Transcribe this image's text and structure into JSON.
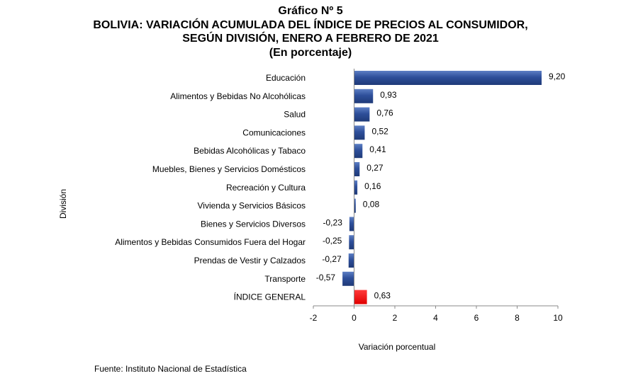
{
  "header": {
    "line1": "Gráfico Nº 5",
    "line2": "BOLIVIA: VARIACIÓN ACUMULADA DEL ÍNDICE DE PRECIOS AL CONSUMIDOR,",
    "line3": "SEGÚN DIVISIÓN, ENERO A FEBRERO DE 2021",
    "line4": "(En porcentaje)"
  },
  "footer": {
    "source": "Fuente: Instituto Nacional de Estadística"
  },
  "chart_data": {
    "type": "bar",
    "orientation": "horizontal",
    "title": "BOLIVIA: VARIACIÓN ACUMULADA DEL ÍNDICE DE PRECIOS AL CONSUMIDOR, SEGÚN DIVISIÓN, ENERO A FEBRERO DE 2021",
    "subtitle": "(En porcentaje)",
    "xlabel": "Variación porcentual",
    "ylabel": "División",
    "xlim": [
      -2,
      10
    ],
    "xticks": [
      -2,
      0,
      2,
      4,
      6,
      8,
      10
    ],
    "xtick_labels": [
      "-2",
      "0",
      "2",
      "4",
      "6",
      "8",
      "10"
    ],
    "grid": false,
    "categories": [
      "Educación",
      "Alimentos y Bebidas No Alcohólicas",
      "Salud",
      "Comunicaciones",
      "Bebidas Alcohólicas y Tabaco",
      "Muebles, Bienes y Servicios Domésticos",
      "Recreación y Cultura",
      "Vivienda y Servicios Básicos",
      "Bienes y Servicios Diversos",
      "Alimentos y Bebidas Consumidos Fuera del Hogar",
      "Prendas de Vestir y Calzados",
      "Transporte",
      "ÍNDICE GENERAL"
    ],
    "values": [
      9.2,
      0.93,
      0.76,
      0.52,
      0.41,
      0.27,
      0.16,
      0.08,
      -0.23,
      -0.25,
      -0.27,
      -0.57,
      0.63
    ],
    "value_labels": [
      "9,20",
      "0,93",
      "0,76",
      "0,52",
      "0,41",
      "0,27",
      "0,16",
      "0,08",
      "-0,23",
      "-0,25",
      "-0,27",
      "-0,57",
      "0,63"
    ],
    "colors": {
      "division": "#2e4f9a",
      "general": "#ff0000"
    },
    "highlight_category": "ÍNDICE GENERAL"
  }
}
